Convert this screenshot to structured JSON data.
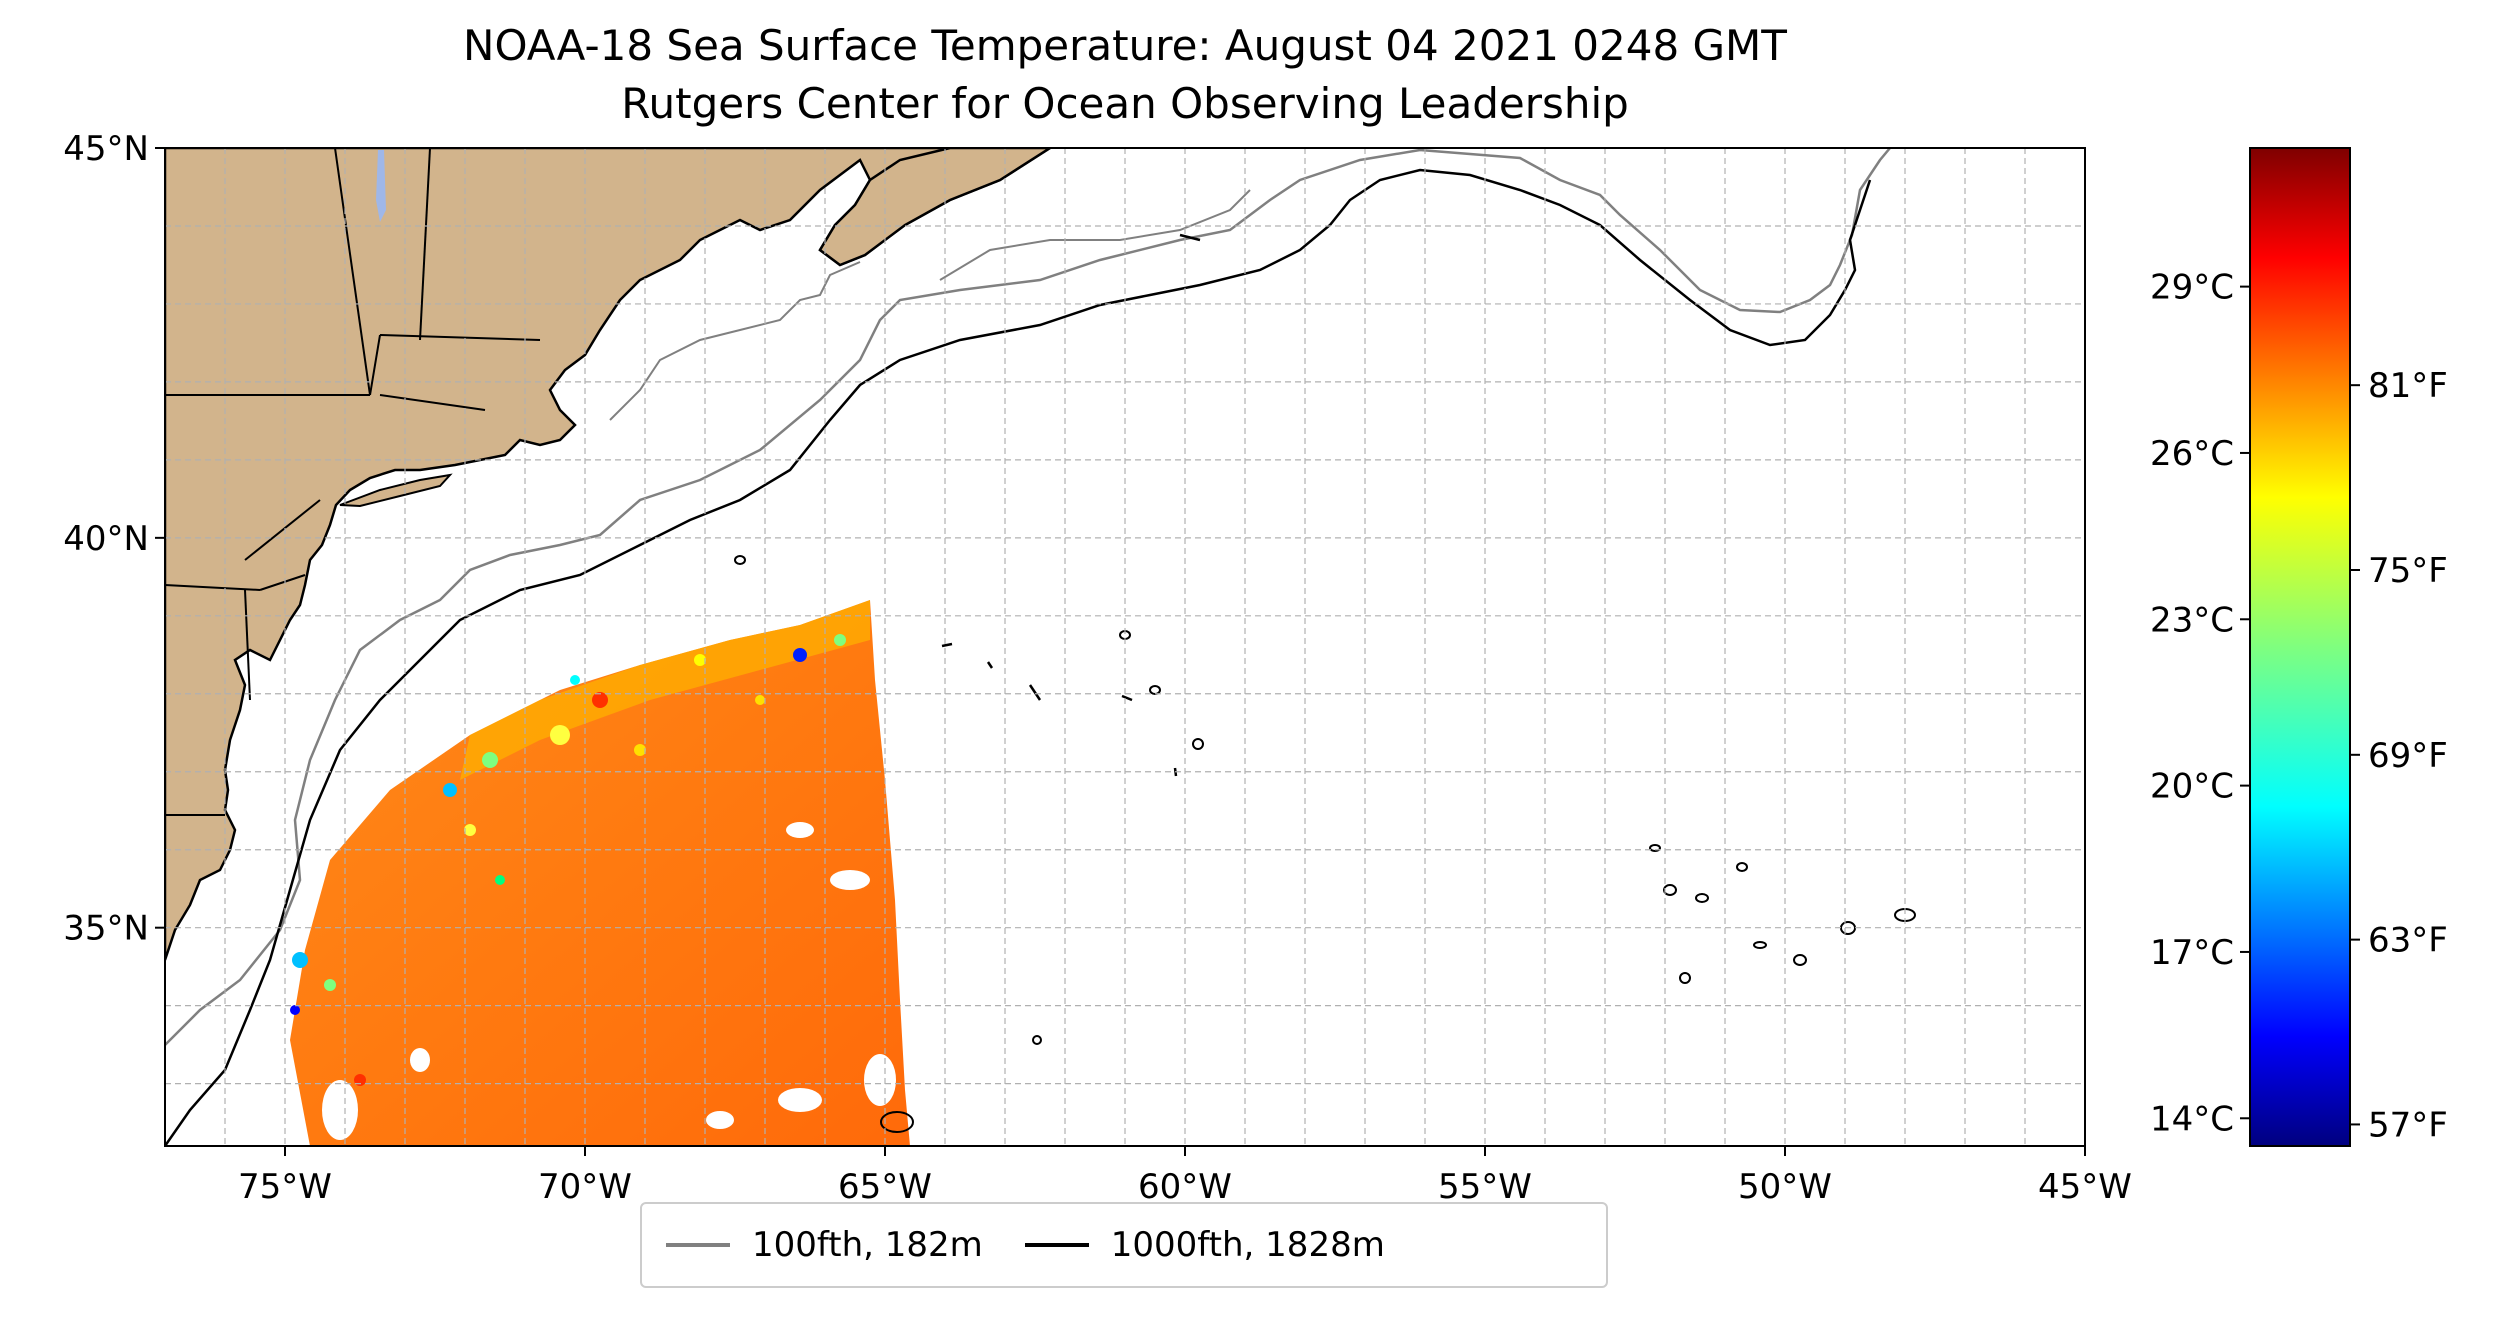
{
  "title": "NOAA-18 Sea Surface Temperature: August 04 2021 0248 GMT",
  "subtitle": "Rutgers Center for Ocean Observing Leadership",
  "map": {
    "lon_range": [
      -77,
      -45
    ],
    "lat_range": [
      32.2,
      45
    ],
    "lon_ticks": [
      {
        "value": -75,
        "label": "75°W"
      },
      {
        "value": -70,
        "label": "70°W"
      },
      {
        "value": -65,
        "label": "65°W"
      },
      {
        "value": -60,
        "label": "60°W"
      },
      {
        "value": -55,
        "label": "55°W"
      },
      {
        "value": -50,
        "label": "50°W"
      },
      {
        "value": -45,
        "label": "45°W"
      }
    ],
    "lat_ticks": [
      {
        "value": 45,
        "label": "45°N"
      },
      {
        "value": 40,
        "label": "40°N"
      },
      {
        "value": 35,
        "label": "35°N"
      }
    ],
    "gridlines": true,
    "land_color": "#d2b48c",
    "water_color": "#ffffff"
  },
  "colorbar": {
    "colormap": "jet",
    "celsius_range": [
      13.5,
      31.5
    ],
    "celsius_ticks": [
      {
        "value": 14,
        "label": "14°C"
      },
      {
        "value": 17,
        "label": "17°C"
      },
      {
        "value": 20,
        "label": "20°C"
      },
      {
        "value": 23,
        "label": "23°C"
      },
      {
        "value": 26,
        "label": "26°C"
      },
      {
        "value": 29,
        "label": "29°C"
      }
    ],
    "fahrenheit_ticks": [
      {
        "value": 57,
        "label": "57°F"
      },
      {
        "value": 63,
        "label": "63°F"
      },
      {
        "value": 69,
        "label": "69°F"
      },
      {
        "value": 75,
        "label": "75°F"
      },
      {
        "value": 81,
        "label": "81°F"
      }
    ]
  },
  "legend": {
    "items": [
      {
        "label": "100fth, 182m",
        "color": "#808080"
      },
      {
        "label": "1000fth, 1828m",
        "color": "#000000"
      }
    ]
  }
}
